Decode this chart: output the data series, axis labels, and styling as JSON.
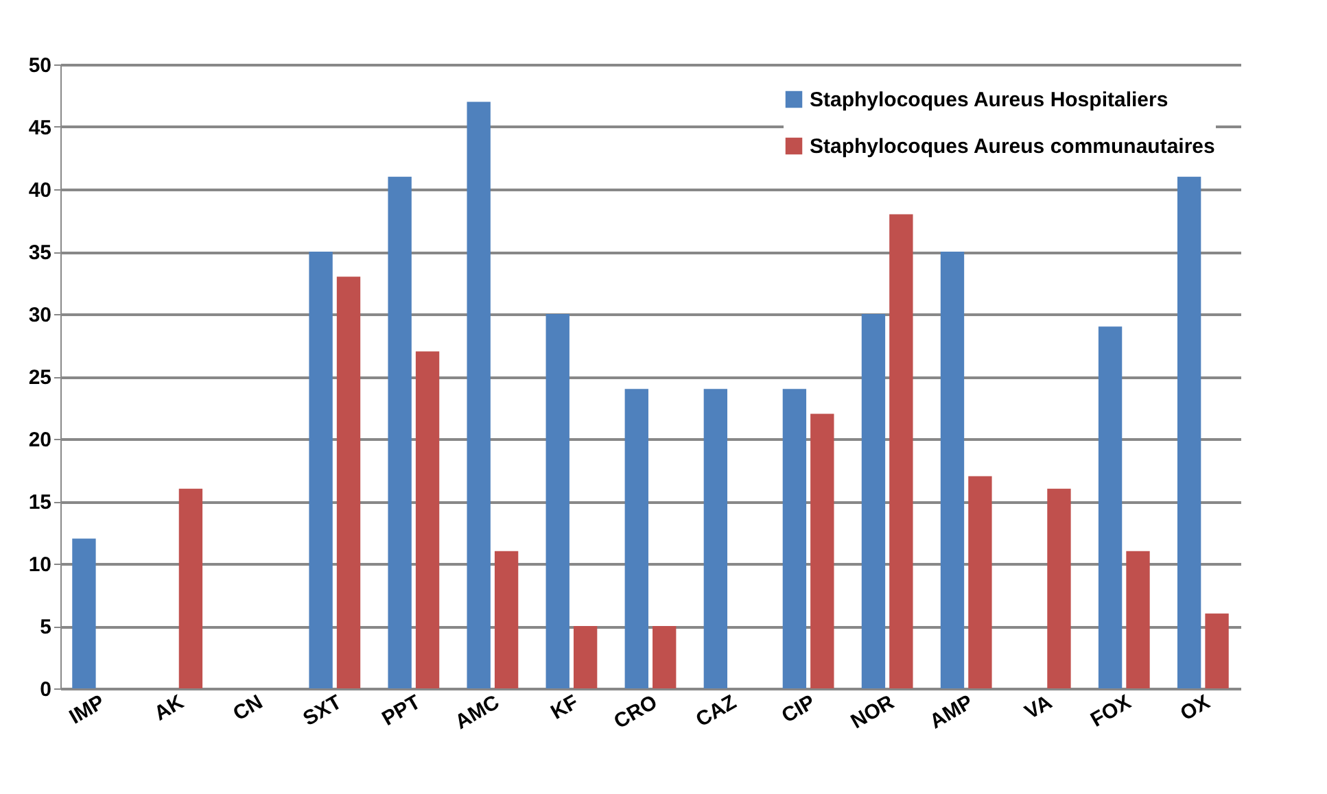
{
  "chart_data": {
    "type": "bar",
    "categories": [
      "IMP",
      "AK",
      "CN",
      "SXT",
      "PPT",
      "AMC",
      "KF",
      "CRO",
      "CAZ",
      "CIP",
      "NOR",
      "AMP",
      "VA",
      "FOX",
      "OX"
    ],
    "series": [
      {
        "name": "Staphylocoques Aureus Hospitaliers",
        "color": "#4f81bd",
        "values": [
          12,
          0,
          0,
          35,
          41,
          47,
          30,
          24,
          24,
          24,
          30,
          35,
          0,
          29,
          41
        ]
      },
      {
        "name": "Staphylocoques Aureus communautaires",
        "color": "#c0504d",
        "values": [
          0,
          16,
          0,
          33,
          27,
          11,
          5,
          5,
          0,
          22,
          38,
          17,
          16,
          11,
          6
        ]
      }
    ],
    "ylim": [
      0,
      50
    ],
    "yticks": [
      0,
      5,
      10,
      15,
      20,
      25,
      30,
      35,
      40,
      45,
      50
    ],
    "grid": "y",
    "legend": "top right"
  }
}
